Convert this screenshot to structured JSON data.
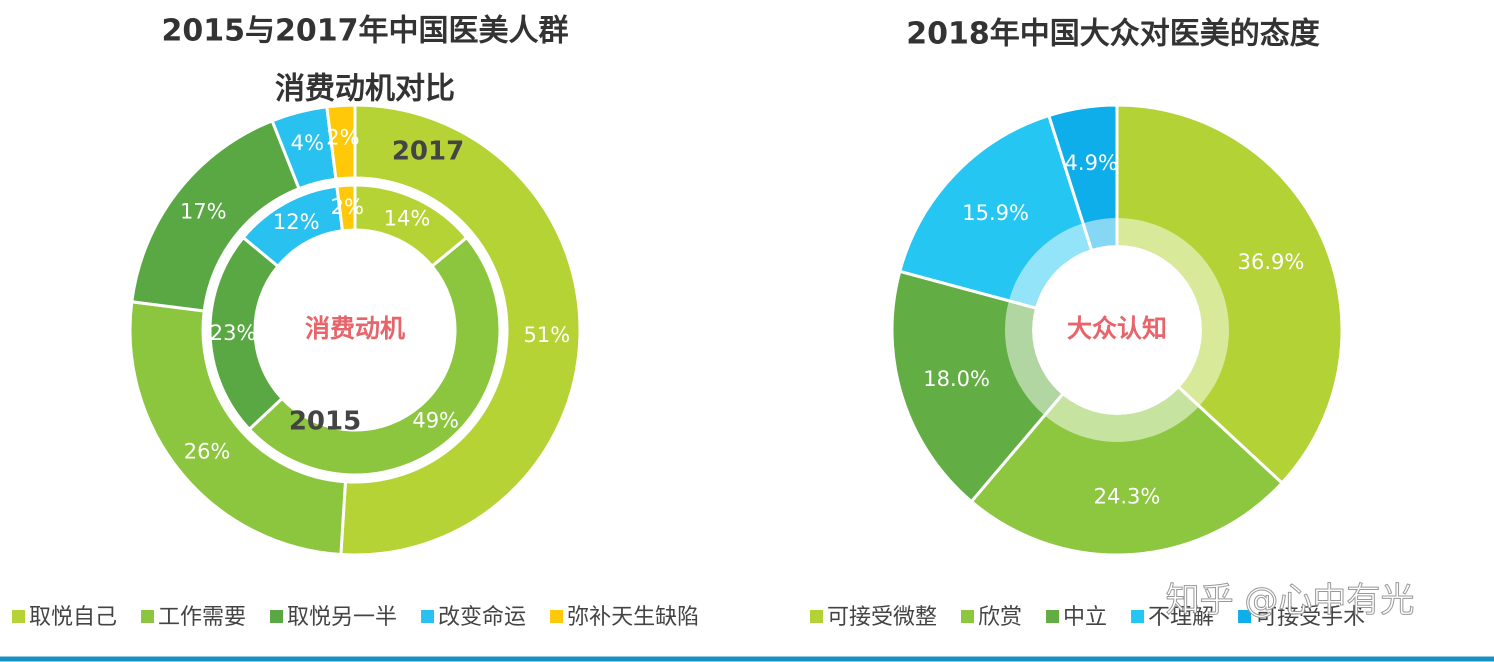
{
  "chart_data": [
    {
      "type": "donut",
      "title": [
        "2015与2017年中国医美人群",
        "消费动机对比"
      ],
      "center_label": "消费动机",
      "categories": [
        "取悦自己",
        "工作需要",
        "取悦另一半",
        "改变命运",
        "弥补天生缺陷"
      ],
      "colors": [
        "#b5d334",
        "#8cc63f",
        "#5aa843",
        "#29c1ef",
        "#ffc90a"
      ],
      "series": [
        {
          "name": "2017",
          "values": [
            51,
            26,
            17,
            4,
            2
          ],
          "value_labels": [
            "51%",
            "26%",
            "17%",
            "4%",
            "2%"
          ]
        },
        {
          "name": "2015",
          "values": [
            14,
            49,
            23,
            12,
            2
          ],
          "value_labels": [
            "14%",
            "49%",
            "23%",
            "12%",
            "2%"
          ]
        }
      ]
    },
    {
      "type": "donut",
      "title": [
        "2018年中国大众对医美的态度"
      ],
      "center_label": "大众认知",
      "categories": [
        "可接受微整",
        "欣赏",
        "中立",
        "不理解",
        "可接受手术"
      ],
      "colors": [
        "#b2d235",
        "#8dc63f",
        "#63ad45",
        "#26c6f2",
        "#0daeea"
      ],
      "series": [
        {
          "values": [
            36.9,
            24.3,
            18.0,
            15.9,
            4.9
          ],
          "value_labels": [
            "36.9%",
            "24.3%",
            "18.0%",
            "15.9%",
            "4.9%"
          ]
        }
      ]
    }
  ],
  "watermark": "知乎 @心中有光"
}
